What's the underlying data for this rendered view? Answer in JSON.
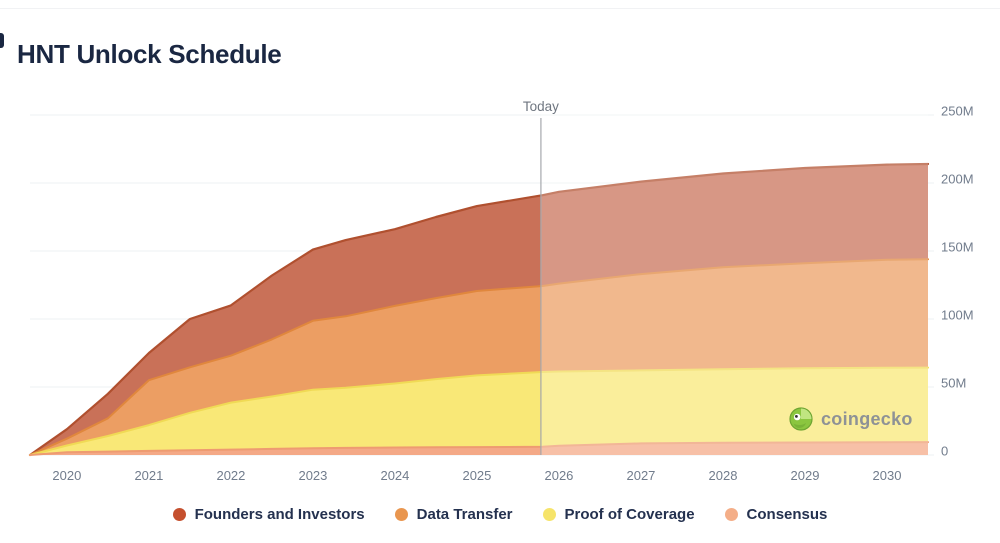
{
  "title": "HNT Unlock Schedule",
  "today": {
    "label": "Today"
  },
  "axes": {
    "y_ticks": [
      "250M",
      "200M",
      "150M",
      "100M",
      "50M",
      "0"
    ],
    "y_tick_values": [
      250,
      200,
      150,
      100,
      50,
      0
    ],
    "x_ticks": [
      "2020",
      "2021",
      "2022",
      "2023",
      "2024",
      "2025",
      "2026",
      "2027",
      "2028",
      "2029",
      "2030"
    ],
    "x_tick_values": [
      2020,
      2021,
      2022,
      2023,
      2024,
      2025,
      2026,
      2027,
      2028,
      2029,
      2030
    ]
  },
  "chart_data": {
    "type": "area",
    "stacked": true,
    "unit": "M HNT",
    "title": "HNT Unlock Schedule",
    "xlabel": "",
    "ylabel": "",
    "x_range": [
      2019.55,
      2030.5
    ],
    "ylim": [
      0,
      250
    ],
    "grid": "horizontal",
    "legend_position": "bottom",
    "today_x": 2025.78,
    "future_style": "areas right of Today line are drawn lighter (faded projection)",
    "x": [
      2019.55,
      2020,
      2020.5,
      2021,
      2021.5,
      2022,
      2022.5,
      2023,
      2023.4,
      2024,
      2024.5,
      2025,
      2025.8,
      2026,
      2027,
      2028,
      2029,
      2030,
      2030.5
    ],
    "stack_note": "series listed top-of-stack first (legend order); chart stacks bottom-up from last series",
    "series": [
      {
        "name": "Founders and Investors",
        "color": "#c5502e",
        "fill": "#c97158",
        "stroke": "#b0502f",
        "values": [
          0,
          7,
          18,
          20,
          35.5,
          37,
          47,
          52.3,
          56,
          56.4,
          59.6,
          62.4,
          66.7,
          67.5,
          68,
          69,
          70,
          70,
          70
        ]
      },
      {
        "name": "Data Transfer",
        "color": "#e9964f",
        "fill": "#ec9e63",
        "stroke": "#e0873d",
        "values": [
          0,
          5,
          13,
          33,
          33.5,
          34.5,
          42,
          50.7,
          52.5,
          57,
          59.6,
          62.1,
          63.3,
          64.6,
          70.8,
          75,
          77.2,
          79.3,
          79.7
        ]
      },
      {
        "name": "Proof of Coverage",
        "color": "#f6e46a",
        "fill": "#f9e877",
        "stroke": "#f0da55",
        "values": [
          0,
          5,
          11.5,
          19,
          27.5,
          34.5,
          38.5,
          43,
          44.3,
          47.1,
          50.1,
          52.7,
          55,
          54.6,
          53.7,
          54,
          54.6,
          54.8,
          54.8
        ]
      },
      {
        "name": "Consensus",
        "color": "#f4ae88",
        "fill": "#f4a987",
        "stroke": "#ee9b71",
        "values": [
          0,
          2,
          2.5,
          3,
          3.5,
          4,
          4.5,
          5,
          5.2,
          5.5,
          5.7,
          5.8,
          6,
          6.8,
          8.5,
          9,
          9.2,
          9.4,
          9.5
        ]
      }
    ],
    "total_at_today_M": 191,
    "total_at_2030_M": 213.5
  },
  "colors": {
    "title_text": "#1a2742",
    "legend_text": "#24314f",
    "axis_text": "#717c8c",
    "grid_line": "#eef0f3",
    "today_line": "#a6a9ad",
    "watermark_text": "#8e9296",
    "gecko_green": "#8bc63f"
  },
  "watermark": {
    "label": "coingecko",
    "icon": "gecko-icon"
  }
}
